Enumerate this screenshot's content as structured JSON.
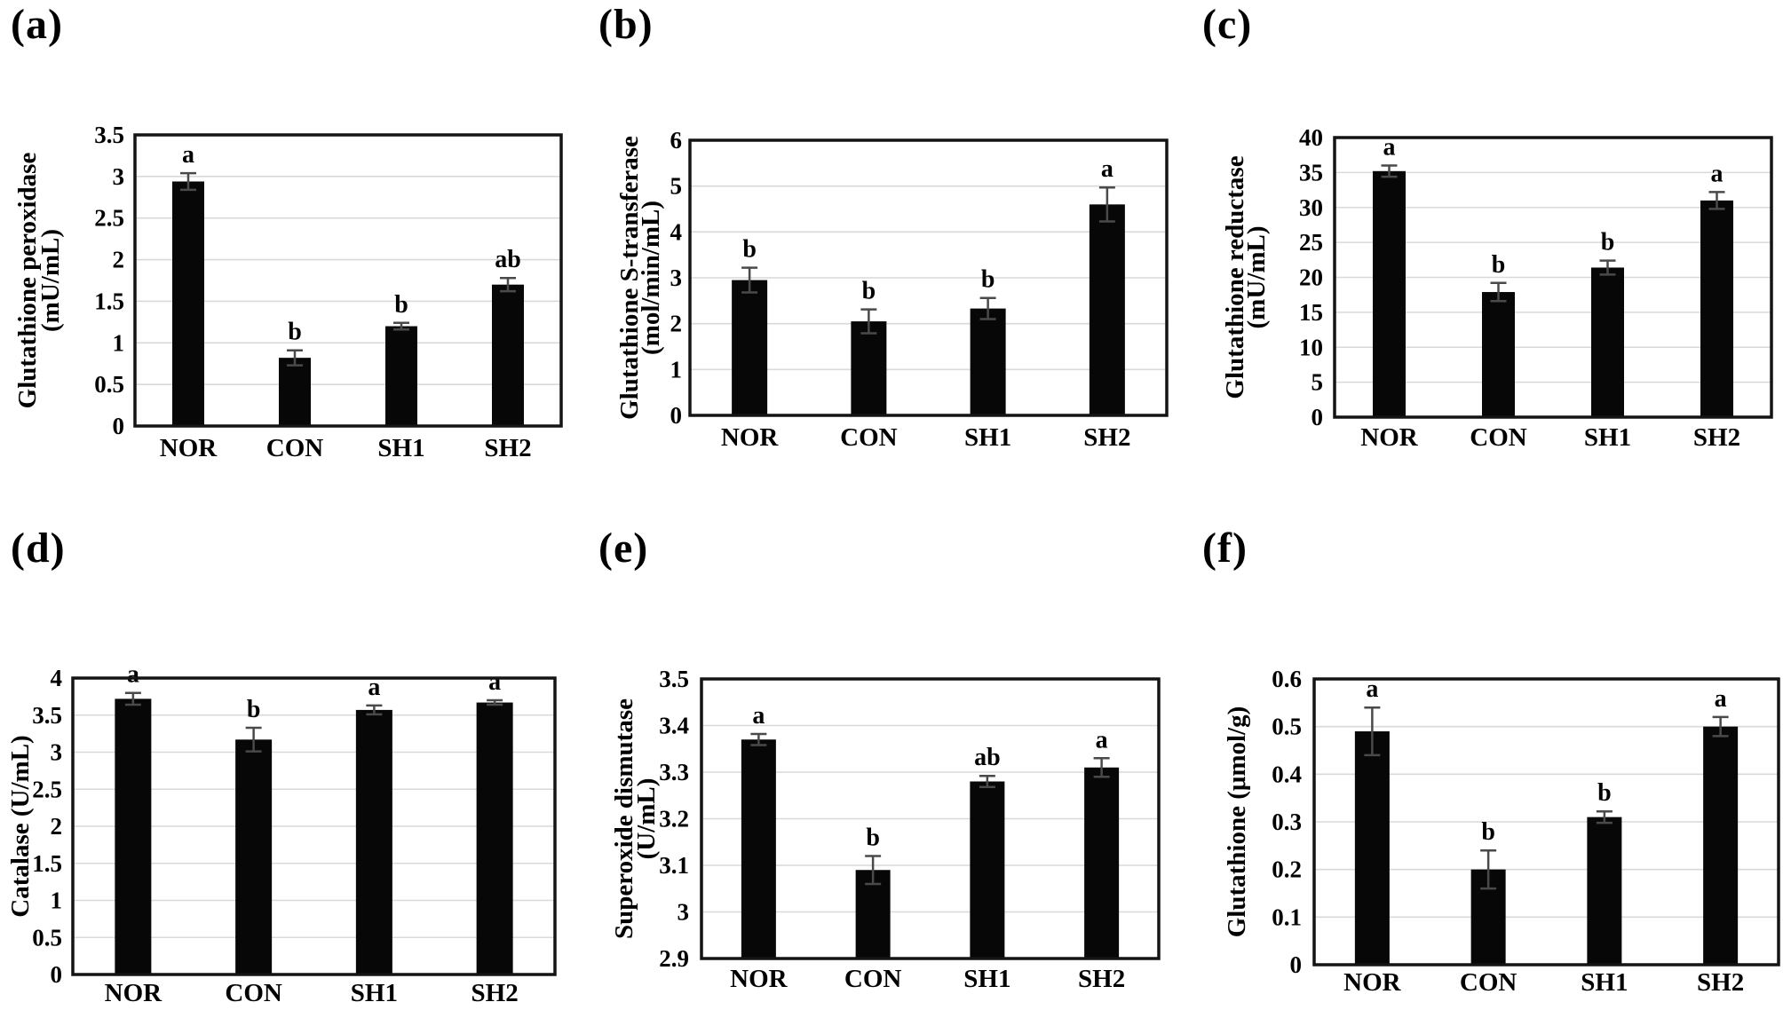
{
  "page": {
    "background": "#ffffff"
  },
  "style": {
    "bar_color": "#070707",
    "error_color": "#4a4a4a",
    "grid_color": "#d9d9d9",
    "axis_color": "#141414",
    "text_color": "#000000"
  },
  "chart_data": [
    {
      "type": "bar",
      "panel_label": "(a)",
      "ylabel": "Glutathione peroxidase (mU/mL)",
      "ylabel_lines": [
        "Glutathione peroxidase",
        "(mU/mL)"
      ],
      "categories": [
        "NOR",
        "CON",
        "SH1",
        "SH2"
      ],
      "values": [
        2.94,
        0.82,
        1.2,
        1.7
      ],
      "errors": [
        0.1,
        0.09,
        0.04,
        0.08
      ],
      "sig_letters": [
        "a",
        "b",
        "b",
        "ab"
      ],
      "ylim": [
        0,
        3.5
      ],
      "yticks": [
        "0",
        "0.5",
        "1",
        "1.5",
        "2",
        "2.5",
        "3",
        "3.5"
      ],
      "grid": true,
      "legend": "none"
    },
    {
      "type": "bar",
      "panel_label": "(b)",
      "ylabel": "Glutathione S-transferase (mol/min/mL)",
      "ylabel_lines": [
        "Glutathione S-transferase",
        "(mol/min/mL)"
      ],
      "categories": [
        "NOR",
        "CON",
        "SH1",
        "SH2"
      ],
      "values": [
        2.95,
        2.05,
        2.33,
        4.6
      ],
      "errors": [
        0.27,
        0.26,
        0.23,
        0.37
      ],
      "sig_letters": [
        "b",
        "b",
        "b",
        "a"
      ],
      "ylim": [
        0,
        6
      ],
      "yticks": [
        "0",
        "1",
        "2",
        "3",
        "4",
        "5",
        "6"
      ],
      "grid": true,
      "legend": "none"
    },
    {
      "type": "bar",
      "panel_label": "(c)",
      "ylabel": "Glutathione reductase (mU/mL)",
      "ylabel_lines": [
        "Glutathione reductase",
        "(mU/mL)"
      ],
      "categories": [
        "NOR",
        "CON",
        "SH1",
        "SH2"
      ],
      "values": [
        35.2,
        17.9,
        21.4,
        31.0
      ],
      "errors": [
        0.8,
        1.3,
        1.0,
        1.2
      ],
      "sig_letters": [
        "a",
        "b",
        "b",
        "a"
      ],
      "ylim": [
        0,
        40
      ],
      "yticks": [
        "0",
        "5",
        "10",
        "15",
        "20",
        "25",
        "30",
        "35",
        "40"
      ],
      "grid": true,
      "legend": "none"
    },
    {
      "type": "bar",
      "panel_label": "(d)",
      "ylabel": "Catalase (U/mL)",
      "ylabel_lines": [
        "Catalase (U/mL)"
      ],
      "categories": [
        "NOR",
        "CON",
        "SH1",
        "SH2"
      ],
      "values": [
        3.72,
        3.17,
        3.57,
        3.67
      ],
      "errors": [
        0.08,
        0.16,
        0.06,
        0.03
      ],
      "sig_letters": [
        "a",
        "b",
        "a",
        "a"
      ],
      "ylim": [
        0,
        4
      ],
      "yticks": [
        "0",
        "0.5",
        "1",
        "1.5",
        "2",
        "2.5",
        "3",
        "3.5",
        "4"
      ],
      "grid": true,
      "legend": "none"
    },
    {
      "type": "bar",
      "panel_label": "(e)",
      "ylabel": "Superoxide dismutase (U/mL)",
      "ylabel_lines": [
        "Superoxide dismutase",
        "(U/mL)"
      ],
      "categories": [
        "NOR",
        "CON",
        "SH1",
        "SH2"
      ],
      "values": [
        3.37,
        3.09,
        3.28,
        3.31
      ],
      "errors": [
        0.012,
        0.03,
        0.012,
        0.02
      ],
      "sig_letters": [
        "a",
        "b",
        "ab",
        "a"
      ],
      "ylim": [
        2.9,
        3.5
      ],
      "yticks": [
        "2.9",
        "3",
        "3.1",
        "3.2",
        "3.3",
        "3.4",
        "3.5"
      ],
      "grid": true,
      "legend": "none"
    },
    {
      "type": "bar",
      "panel_label": "(f)",
      "ylabel": "Glutathione (μmol/g)",
      "ylabel_lines": [
        "Glutathione (μmol/g)"
      ],
      "categories": [
        "NOR",
        "CON",
        "SH1",
        "SH2"
      ],
      "values": [
        0.49,
        0.2,
        0.31,
        0.5
      ],
      "errors": [
        0.05,
        0.04,
        0.012,
        0.02
      ],
      "sig_letters": [
        "a",
        "b",
        "b",
        "a"
      ],
      "ylim": [
        0,
        0.6
      ],
      "yticks": [
        "0",
        "0.1",
        "0.2",
        "0.3",
        "0.4",
        "0.5",
        "0.6"
      ],
      "grid": true,
      "legend": "none"
    }
  ]
}
